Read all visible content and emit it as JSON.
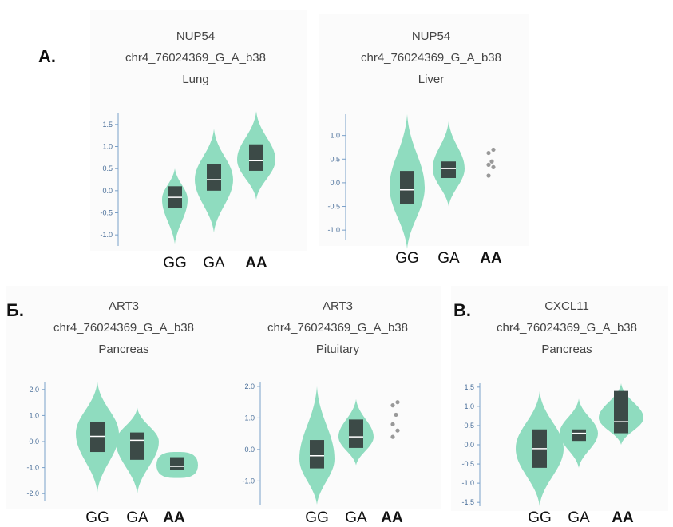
{
  "panel_labels": [
    "A.",
    "Б.",
    "B."
  ],
  "colors": {
    "violin": "#8fdcbf",
    "box": "#3c4a47",
    "median": "#ffffff",
    "axis": "#7aa0c8",
    "tick_label": "#4a6f9a",
    "outlier": "#999999"
  },
  "chart_data": [
    {
      "type": "violin",
      "title": [
        "NUP54",
        "chr4_76024369_G_A_b38",
        "Lung"
      ],
      "categories": [
        "GG",
        "GA",
        "AA"
      ],
      "yticks": [
        "1.5",
        "1.0",
        "0.5",
        "0.0",
        "-0.5",
        "-1.0"
      ],
      "ylim": [
        -1.25,
        1.75
      ],
      "series": [
        {
          "genotype": "GG",
          "min": -1.2,
          "max": 0.5,
          "widest": -0.2,
          "q1": -0.4,
          "median": -0.15,
          "q3": 0.1
        },
        {
          "genotype": "GA",
          "min": -0.95,
          "max": 1.4,
          "widest": 0.25,
          "q1": 0.0,
          "median": 0.25,
          "q3": 0.6
        },
        {
          "genotype": "AA",
          "min": -0.2,
          "max": 1.8,
          "widest": 0.7,
          "q1": 0.45,
          "median": 0.68,
          "q3": 1.05
        }
      ]
    },
    {
      "type": "violin",
      "title": [
        "NUP54",
        "chr4_76024369_G_A_b38",
        "Liver"
      ],
      "categories": [
        "GG",
        "GA",
        "AA"
      ],
      "yticks": [
        "1.0",
        "0.5",
        "0.0",
        "-0.5",
        "-1.0"
      ],
      "ylim": [
        -1.2,
        1.45
      ],
      "series": [
        {
          "genotype": "GG",
          "min": -1.4,
          "max": 1.45,
          "widest": -0.1,
          "q1": -0.45,
          "median": -0.15,
          "q3": 0.25
        },
        {
          "genotype": "GA",
          "min": -0.5,
          "max": 1.3,
          "widest": 0.3,
          "q1": 0.1,
          "median": 0.3,
          "q3": 0.45
        },
        {
          "genotype": "AA",
          "points": [
            0.7,
            0.63,
            0.45,
            0.38,
            0.33,
            0.15
          ]
        }
      ]
    },
    {
      "type": "violin",
      "title": [
        "ART3",
        "chr4_76024369_G_A_b38",
        "Pancreas"
      ],
      "categories": [
        "GG",
        "GA",
        "AA"
      ],
      "yticks": [
        "2.0",
        "1.0",
        "0.0",
        "-1.0",
        "-2.0"
      ],
      "ylim": [
        -2.3,
        2.3
      ],
      "series": [
        {
          "genotype": "GG",
          "min": -1.95,
          "max": 2.3,
          "widest": 0.3,
          "q1": -0.4,
          "median": 0.2,
          "q3": 0.75
        },
        {
          "genotype": "GA",
          "min": -2.0,
          "max": 1.3,
          "widest": 0.0,
          "q1": -0.7,
          "median": 0.05,
          "q3": 0.35
        },
        {
          "genotype": "AA",
          "min": -1.4,
          "max": -0.4,
          "widest": -0.9,
          "q1": -1.1,
          "median": -0.95,
          "q3": -0.6,
          "flat": true
        }
      ]
    },
    {
      "type": "violin",
      "title": [
        "ART3",
        "chr4_76024369_G_A_b38",
        "Pituitary"
      ],
      "categories": [
        "GG",
        "GA",
        "AA"
      ],
      "yticks": [
        "2.0",
        "1.0",
        "0.0",
        "-1.0"
      ],
      "ylim": [
        -1.75,
        2.15
      ],
      "series": [
        {
          "genotype": "GG",
          "min": -1.75,
          "max": 2.0,
          "widest": -0.3,
          "q1": -0.6,
          "median": -0.2,
          "q3": 0.3
        },
        {
          "genotype": "GA",
          "min": -0.5,
          "max": 1.6,
          "widest": 0.4,
          "q1": 0.05,
          "median": 0.4,
          "q3": 0.95
        },
        {
          "genotype": "AA",
          "points": [
            1.5,
            1.4,
            1.1,
            0.8,
            0.6,
            0.4
          ]
        }
      ]
    },
    {
      "type": "violin",
      "title": [
        "CXCL11",
        "chr4_76024369_G_A_b38",
        "Pancreas"
      ],
      "categories": [
        "GG",
        "GA",
        "AA"
      ],
      "yticks": [
        "1.5",
        "1.0",
        "0.5",
        "0.0",
        "-0.5",
        "-1.0",
        "-1.5"
      ],
      "ylim": [
        -1.6,
        1.6
      ],
      "series": [
        {
          "genotype": "GG",
          "min": -1.6,
          "max": 1.4,
          "widest": -0.1,
          "q1": -0.6,
          "median": -0.1,
          "q3": 0.4
        },
        {
          "genotype": "GA",
          "min": -0.6,
          "max": 1.2,
          "widest": 0.3,
          "q1": 0.1,
          "median": 0.3,
          "q3": 0.4
        },
        {
          "genotype": "AA",
          "min": 0.0,
          "max": 1.6,
          "widest": 0.7,
          "q1": 0.3,
          "median": 0.6,
          "q3": 1.4
        }
      ]
    }
  ]
}
